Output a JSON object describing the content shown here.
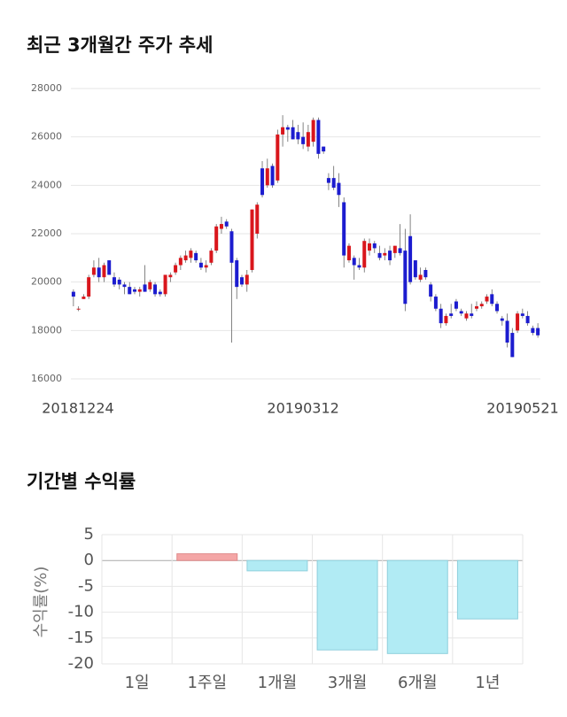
{
  "chart_data": [
    {
      "type": "candlestick",
      "title": "최근 3개월간 주가 추세",
      "categories": [
        "20181224",
        null,
        null,
        null,
        null,
        null,
        null,
        null,
        null,
        null,
        null,
        null,
        null,
        null,
        null,
        null,
        null,
        null,
        null,
        null,
        null,
        null,
        null,
        null,
        null,
        null,
        null,
        null,
        null,
        null,
        null,
        null,
        null,
        null,
        null,
        null,
        null,
        null,
        null,
        null,
        null,
        null,
        null,
        null,
        null,
        "20190312",
        null,
        null,
        null,
        null,
        null,
        null,
        null,
        null,
        null,
        null,
        null,
        null,
        null,
        null,
        null,
        null,
        null,
        null,
        null,
        null,
        null,
        null,
        null,
        null,
        null,
        null,
        null,
        null,
        null,
        null,
        null,
        null,
        null,
        null,
        null,
        null,
        null,
        null,
        null,
        null,
        null,
        null,
        null,
        null,
        null,
        "20190521"
      ],
      "ohlc": [
        [
          19600,
          19700,
          19000,
          19400
        ],
        [
          18900,
          19000,
          18800,
          18900
        ],
        [
          19300,
          19500,
          19300,
          19400
        ],
        [
          19400,
          20300,
          19300,
          20200
        ],
        [
          20300,
          20900,
          20200,
          20600
        ],
        [
          20600,
          21000,
          20000,
          20200
        ],
        [
          20200,
          20800,
          20000,
          20700
        ],
        [
          20900,
          20900,
          20300,
          20300
        ],
        [
          20200,
          20400,
          19800,
          19900
        ],
        [
          20100,
          20200,
          19700,
          19900
        ],
        [
          19900,
          20000,
          19500,
          19800
        ],
        [
          19800,
          20000,
          19500,
          19500
        ],
        [
          19700,
          19800,
          19500,
          19600
        ],
        [
          19600,
          19800,
          19400,
          19700
        ],
        [
          19900,
          20700,
          19600,
          19600
        ],
        [
          19700,
          20100,
          19600,
          20000
        ],
        [
          19900,
          20000,
          19400,
          19500
        ],
        [
          19600,
          19700,
          19400,
          19500
        ],
        [
          19500,
          20300,
          19400,
          20300
        ],
        [
          20200,
          20400,
          20000,
          20300
        ],
        [
          20400,
          20800,
          20300,
          20700
        ],
        [
          20700,
          21100,
          20500,
          21000
        ],
        [
          20900,
          21300,
          20800,
          21100
        ],
        [
          21000,
          21400,
          20800,
          21300
        ],
        [
          21200,
          21300,
          20800,
          20900
        ],
        [
          20800,
          21000,
          20500,
          20600
        ],
        [
          20600,
          20900,
          20400,
          20700
        ],
        [
          20800,
          21400,
          20700,
          21300
        ],
        [
          21300,
          22400,
          21200,
          22300
        ],
        [
          22200,
          22700,
          22000,
          22400
        ],
        [
          22500,
          22600,
          22200,
          22300
        ],
        [
          22100,
          22200,
          17500,
          20800
        ],
        [
          20900,
          21000,
          19300,
          19800
        ],
        [
          20200,
          20300,
          19800,
          19900
        ],
        [
          19900,
          20500,
          19600,
          20300
        ],
        [
          20500,
          23000,
          20400,
          23000
        ],
        [
          22000,
          23300,
          21800,
          23200
        ],
        [
          24700,
          25000,
          23500,
          23600
        ],
        [
          24000,
          25100,
          23900,
          24700
        ],
        [
          24800,
          24900,
          23900,
          24000
        ],
        [
          24200,
          26300,
          24100,
          26100
        ],
        [
          26100,
          26900,
          25600,
          26400
        ],
        [
          26400,
          26500,
          25800,
          26300
        ],
        [
          26400,
          26700,
          25900,
          25900
        ],
        [
          26200,
          26500,
          25700,
          25900
        ],
        [
          26000,
          26600,
          25500,
          25700
        ],
        [
          25600,
          26500,
          25400,
          26200
        ],
        [
          25800,
          26800,
          25600,
          26700
        ],
        [
          26700,
          26800,
          25100,
          25300
        ],
        [
          25600,
          25600,
          25300,
          25400
        ],
        [
          24300,
          24500,
          23800,
          24100
        ],
        [
          24300,
          24800,
          23800,
          23900
        ],
        [
          24100,
          24500,
          23100,
          23600
        ],
        [
          23300,
          23500,
          20600,
          21100
        ],
        [
          20900,
          21600,
          20800,
          21500
        ],
        [
          21000,
          21100,
          20100,
          20700
        ],
        [
          20700,
          21000,
          20500,
          20600
        ],
        [
          20600,
          21800,
          20400,
          21700
        ],
        [
          21300,
          21800,
          21100,
          21600
        ],
        [
          21600,
          21700,
          21200,
          21400
        ],
        [
          21200,
          21500,
          20900,
          21000
        ],
        [
          21100,
          21400,
          20900,
          21200
        ],
        [
          21300,
          21500,
          20700,
          20900
        ],
        [
          21200,
          21500,
          21000,
          21500
        ],
        [
          21400,
          22400,
          21100,
          21200
        ],
        [
          21300,
          22200,
          18800,
          19100
        ],
        [
          21900,
          22800,
          19900,
          20000
        ],
        [
          20900,
          20900,
          20100,
          20200
        ],
        [
          20100,
          20600,
          20000,
          20300
        ],
        [
          20500,
          20600,
          20100,
          20200
        ],
        [
          19900,
          20000,
          19200,
          19400
        ],
        [
          19400,
          19500,
          18800,
          18900
        ],
        [
          18900,
          19100,
          18100,
          18300
        ],
        [
          18300,
          18700,
          18200,
          18600
        ],
        [
          18700,
          19100,
          18500,
          18600
        ],
        [
          19200,
          19300,
          18800,
          18900
        ],
        [
          18800,
          18900,
          18600,
          18700
        ],
        [
          18500,
          18800,
          18400,
          18700
        ],
        [
          18700,
          19100,
          18500,
          18600
        ],
        [
          18900,
          19200,
          18800,
          19000
        ],
        [
          19000,
          19200,
          18900,
          19100
        ],
        [
          19200,
          19500,
          19100,
          19400
        ],
        [
          19500,
          19700,
          19000,
          19100
        ],
        [
          19100,
          19200,
          18700,
          18800
        ],
        [
          18500,
          18600,
          18200,
          18400
        ],
        [
          18400,
          18700,
          17300,
          17500
        ],
        [
          17900,
          18100,
          16900,
          16900
        ],
        [
          18000,
          18800,
          17900,
          18700
        ],
        [
          18700,
          18900,
          18500,
          18600
        ],
        [
          18600,
          18800,
          18200,
          18300
        ],
        [
          18100,
          18200,
          17800,
          17900
        ],
        [
          18100,
          18300,
          17700,
          17800
        ]
      ],
      "up_color": "#d9161c",
      "down_color": "#1c1ccf",
      "ylim": [
        16000,
        28000
      ],
      "yticks": [
        16000,
        18000,
        20000,
        22000,
        24000,
        26000,
        28000
      ],
      "grid": true
    },
    {
      "type": "bar",
      "title": "기간별 수익률",
      "ylabel": "수익률(%)",
      "categories": [
        "1일",
        "1주일",
        "1개월",
        "3개월",
        "6개월",
        "1년"
      ],
      "values": [
        0,
        1.3,
        -2,
        -17.3,
        -18,
        -11.3
      ],
      "positive_color": "#f4a6a6",
      "negative_color": "#b1ebf4",
      "ylim": [
        -20,
        5
      ],
      "yticks": [
        5,
        0,
        -5,
        -10,
        -15,
        -20
      ],
      "grid": true
    }
  ]
}
